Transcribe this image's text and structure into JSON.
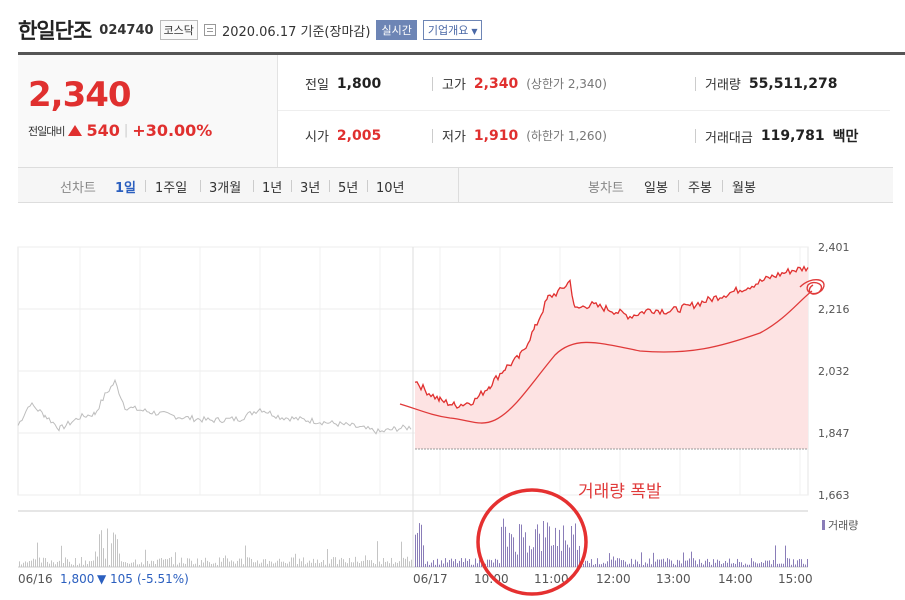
{
  "header": {
    "name": "한일단조",
    "code": "024740",
    "market": "코스닥",
    "date": "2020.06.17 기준(장마감)",
    "realtime_label": "실시간",
    "company_label": "기업개요"
  },
  "price": {
    "current": "2,340",
    "change_label": "전일대비",
    "change": "540",
    "change_pct": "+30.00%"
  },
  "info": {
    "prev_close_label": "전일",
    "prev_close": "1,800",
    "high_label": "고가",
    "high": "2,340",
    "high_limit": "(상한가 2,340)",
    "volume_label": "거래량",
    "volume": "55,511,278",
    "open_label": "시가",
    "open": "2,005",
    "low_label": "저가",
    "low": "1,910",
    "low_limit": "(하한가 1,260)",
    "amount_label": "거래대금",
    "amount": "119,781",
    "amount_unit": "백만"
  },
  "tabs": {
    "line_label": "선차트",
    "line": [
      "1일",
      "1주일",
      "3개월",
      "1년",
      "3년",
      "5년",
      "10년"
    ],
    "candle_label": "봉차트",
    "candle": [
      "일봉",
      "주봉",
      "월봉"
    ]
  },
  "chart_data": {
    "type": "line",
    "y_ticks": [
      "2,401",
      "2,216",
      "2,032",
      "1,847",
      "1,663"
    ],
    "ylim": [
      1663,
      2401
    ],
    "prev_close_ref": 1800,
    "x_labels": [
      "06/16",
      "06/17",
      "10:00",
      "11:00",
      "12:00",
      "13:00",
      "14:00",
      "15:00"
    ],
    "legend_volume": "거래량",
    "prev_day_summary": {
      "date": "06/16",
      "close": "1,800",
      "change": "105",
      "change_pct": "(-5.51%)"
    },
    "annotation": "거래량 폭발",
    "colors": {
      "up": "#e0302f",
      "prev": "#bdbdbd",
      "volume": "#8a7db8",
      "annotation": "#e03a3a"
    }
  }
}
